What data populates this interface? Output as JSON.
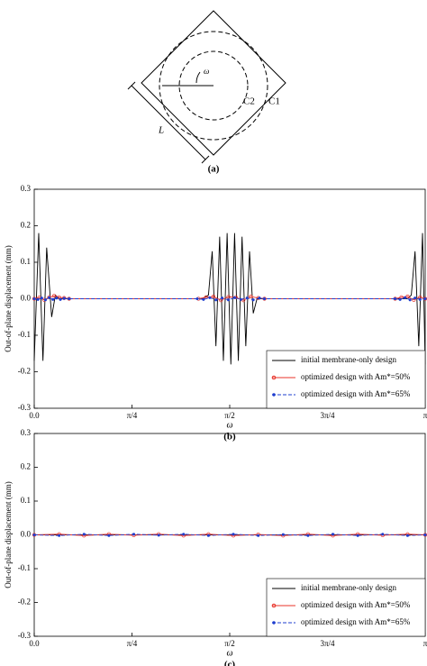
{
  "diagram": {
    "labels": [
      "ω",
      "C2",
      "C1",
      "L"
    ],
    "caption": "(a)"
  },
  "chart_data": [
    {
      "type": "line",
      "caption": "(b)",
      "xlabel": "ω",
      "ylabel": "Out-of-plane displacement (mm)",
      "xlim": [
        0,
        3.1416
      ],
      "ylim": [
        -0.3,
        0.3
      ],
      "xticks": [
        {
          "value": 0,
          "label": "0.0"
        },
        {
          "value": 0.7854,
          "label": "π/4"
        },
        {
          "value": 1.5708,
          "label": "π/2"
        },
        {
          "value": 2.3562,
          "label": "3π/4"
        },
        {
          "value": 3.1416,
          "label": "π"
        }
      ],
      "yticks": [
        -0.3,
        -0.2,
        -0.1,
        {
          "value": 0,
          "label": "0.0"
        },
        0.1,
        0.2,
        0.3
      ],
      "legend": "lower right",
      "series": [
        {
          "name": "initial membrane-only design",
          "color": "#000000",
          "line_style": "solid",
          "marker": "none",
          "x": [
            0,
            0.036,
            0.07,
            0.1,
            0.14,
            0.17,
            0.2,
            1.35,
            1.4,
            1.43,
            1.46,
            1.49,
            1.52,
            1.55,
            1.58,
            1.61,
            1.64,
            1.67,
            1.7,
            1.73,
            1.76,
            1.79,
            3.0,
            3.03,
            3.06,
            3.09,
            3.12,
            3.1416
          ],
          "values": [
            -0.17,
            0.18,
            -0.17,
            0.14,
            -0.05,
            0.01,
            0,
            0,
            0.01,
            0.13,
            -0.13,
            0.17,
            -0.17,
            0.18,
            -0.18,
            0.18,
            -0.17,
            0.17,
            -0.13,
            0.13,
            -0.04,
            0,
            0,
            0.01,
            0.13,
            -0.13,
            0.18,
            -0.18
          ]
        },
        {
          "name": "optimized design with Am*=50%",
          "color": "#e8332a",
          "line_style": "solid",
          "marker": "circle",
          "x": [
            0,
            0.04,
            0.08,
            0.12,
            0.16,
            0.2,
            0.24,
            0.28,
            1.32,
            1.38,
            1.44,
            1.5,
            1.56,
            1.62,
            1.68,
            1.74,
            1.8,
            1.85,
            2.9,
            2.95,
            3.0,
            3.05,
            3.1,
            3.1416
          ],
          "values": [
            0,
            0.003,
            -0.003,
            0.004,
            0.008,
            0.004,
            0.002,
            0,
            0,
            0.004,
            0.006,
            -0.004,
            0.005,
            0.004,
            -0.004,
            0.006,
            0.002,
            0,
            0,
            0.004,
            0.006,
            -0.003,
            0.004,
            0
          ]
        },
        {
          "name": "optimized design with Am*=65%",
          "color": "#1f3fcf",
          "line_style": "dashed",
          "marker": "dot",
          "x": [
            0,
            0.03,
            0.06,
            0.09,
            0.12,
            0.15,
            0.18,
            0.21,
            0.24,
            0.28,
            1.31,
            1.36,
            1.41,
            1.46,
            1.51,
            1.56,
            1.61,
            1.66,
            1.71,
            1.76,
            1.81,
            1.85,
            2.9,
            2.94,
            2.98,
            3.02,
            3.06,
            3.1,
            3.1416
          ],
          "values": [
            0,
            -0.002,
            0.002,
            -0.003,
            0.003,
            -0.002,
            0.002,
            -0.002,
            0.001,
            0,
            0,
            -0.002,
            0.003,
            -0.003,
            0.002,
            -0.003,
            0.003,
            -0.002,
            0.002,
            -0.003,
            0.002,
            0,
            0,
            -0.002,
            0.003,
            -0.003,
            0.002,
            -0.002,
            0
          ]
        }
      ]
    },
    {
      "type": "line",
      "caption": "(c)",
      "xlabel": "ω",
      "ylabel": "Out-of-plane displacement (mm)",
      "xlim": [
        0,
        3.1416
      ],
      "ylim": [
        -0.3,
        0.3
      ],
      "xticks": [
        {
          "value": 0,
          "label": "0.0"
        },
        {
          "value": 0.7854,
          "label": "π/4"
        },
        {
          "value": 1.5708,
          "label": "π/2"
        },
        {
          "value": 2.3562,
          "label": "3π/4"
        },
        {
          "value": 3.1416,
          "label": "π"
        }
      ],
      "yticks": [
        -0.3,
        -0.2,
        -0.1,
        {
          "value": 0,
          "label": "0.0"
        },
        0.1,
        0.2,
        0.3
      ],
      "legend": "lower right",
      "series": [
        {
          "name": "initial membrane-only design",
          "color": "#000000",
          "line_style": "solid",
          "marker": "none",
          "x": [
            0,
            0.5,
            1.0,
            1.5,
            2.0,
            2.5,
            3.0,
            3.1416
          ],
          "values": [
            0,
            0,
            0,
            0,
            0,
            0,
            0,
            0
          ]
        },
        {
          "name": "optimized design with Am*=50%",
          "color": "#e8332a",
          "line_style": "solid",
          "marker": "circle",
          "x": [
            0,
            0.2,
            0.4,
            0.6,
            0.8,
            1.0,
            1.2,
            1.4,
            1.6,
            1.8,
            2.0,
            2.2,
            2.4,
            2.6,
            2.8,
            3.0,
            3.1416
          ],
          "values": [
            0,
            0.002,
            -0.002,
            0.002,
            -0.001,
            0.002,
            -0.002,
            0.002,
            -0.002,
            0.001,
            -0.002,
            0.002,
            -0.002,
            0.002,
            -0.001,
            0.002,
            0
          ]
        },
        {
          "name": "optimized design with Am*=65%",
          "color": "#1f3fcf",
          "line_style": "dashed",
          "marker": "dot",
          "x": [
            0,
            0.2,
            0.4,
            0.6,
            0.8,
            1.0,
            1.2,
            1.4,
            1.6,
            1.8,
            2.0,
            2.2,
            2.4,
            2.6,
            2.8,
            3.0,
            3.1416
          ],
          "values": [
            0,
            -0.002,
            0.002,
            -0.002,
            0.002,
            -0.001,
            0.002,
            -0.002,
            0.002,
            -0.002,
            0.001,
            -0.002,
            0.002,
            -0.002,
            0.002,
            -0.002,
            0
          ]
        }
      ]
    }
  ]
}
